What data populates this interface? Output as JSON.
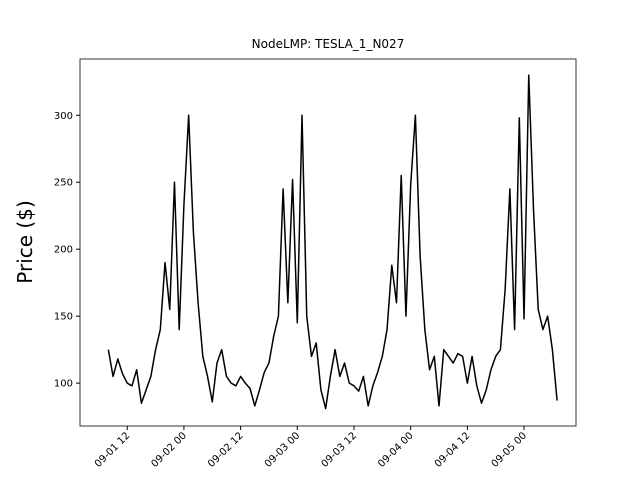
{
  "chart_data": {
    "type": "line",
    "title": "NodeLMP: TESLA_1_N027",
    "y_label": "Price ($)",
    "x": [
      "09-01 08",
      "09-01 09",
      "09-01 10",
      "09-01 11",
      "09-01 12",
      "09-01 13",
      "09-01 14",
      "09-01 15",
      "09-01 16",
      "09-01 17",
      "09-01 18",
      "09-01 19",
      "09-01 20",
      "09-01 21",
      "09-01 22",
      "09-01 23",
      "09-02 00",
      "09-02 01",
      "09-02 02",
      "09-02 03",
      "09-02 04",
      "09-02 05",
      "09-02 06",
      "09-02 07",
      "09-02 08",
      "09-02 09",
      "09-02 10",
      "09-02 11",
      "09-02 12",
      "09-02 13",
      "09-02 14",
      "09-02 15",
      "09-02 16",
      "09-02 17",
      "09-02 18",
      "09-02 19",
      "09-02 20",
      "09-02 21",
      "09-02 22",
      "09-02 23",
      "09-03 00",
      "09-03 01",
      "09-03 02",
      "09-03 03",
      "09-03 04",
      "09-03 05",
      "09-03 06",
      "09-03 07",
      "09-03 08",
      "09-03 09",
      "09-03 10",
      "09-03 11",
      "09-03 12",
      "09-03 13",
      "09-03 14",
      "09-03 15",
      "09-03 16",
      "09-03 17",
      "09-03 18",
      "09-03 19",
      "09-03 20",
      "09-03 21",
      "09-03 22",
      "09-03 23",
      "09-04 00",
      "09-04 01",
      "09-04 02",
      "09-04 03",
      "09-04 04",
      "09-04 05",
      "09-04 06",
      "09-04 07",
      "09-04 08",
      "09-04 09",
      "09-04 10",
      "09-04 11",
      "09-04 12",
      "09-04 13",
      "09-04 14",
      "09-04 15",
      "09-04 16",
      "09-04 17",
      "09-04 18",
      "09-04 19",
      "09-04 20",
      "09-04 21",
      "09-04 22",
      "09-04 23",
      "09-05 00",
      "09-05 01",
      "09-05 02",
      "09-05 03",
      "09-05 04",
      "09-05 05",
      "09-05 06",
      "09-05 07"
    ],
    "series": [
      {
        "name": "TESLA_1_N027",
        "color": "#000000",
        "values": [
          125,
          105,
          118,
          107,
          100,
          98,
          110,
          85,
          95,
          105,
          125,
          140,
          190,
          155,
          250,
          140,
          233,
          300,
          213,
          160,
          120,
          105,
          86,
          115,
          125,
          105,
          100,
          98,
          105,
          100,
          96,
          83,
          95,
          108,
          115,
          135,
          150,
          245,
          160,
          252,
          145,
          300,
          150,
          120,
          130,
          95,
          81,
          105,
          125,
          105,
          115,
          100,
          98,
          94,
          105,
          83,
          98,
          108,
          120,
          140,
          188,
          160,
          255,
          150,
          248,
          300,
          195,
          140,
          110,
          120,
          83,
          125,
          120,
          115,
          122,
          120,
          100,
          120,
          98,
          85,
          95,
          110,
          120,
          125,
          170,
          245,
          140,
          298,
          148,
          330,
          230,
          155,
          140,
          150,
          125,
          87
        ]
      }
    ],
    "xlim": [
      "09-01 02",
      "09-05 11"
    ],
    "xticks": [
      "09-01 12",
      "09-02 00",
      "09-02 12",
      "09-03 00",
      "09-03 12",
      "09-04 00",
      "09-04 12",
      "09-05 00"
    ],
    "ylim": [
      68,
      342
    ],
    "yticks": [
      100,
      150,
      200,
      250,
      300
    ]
  }
}
